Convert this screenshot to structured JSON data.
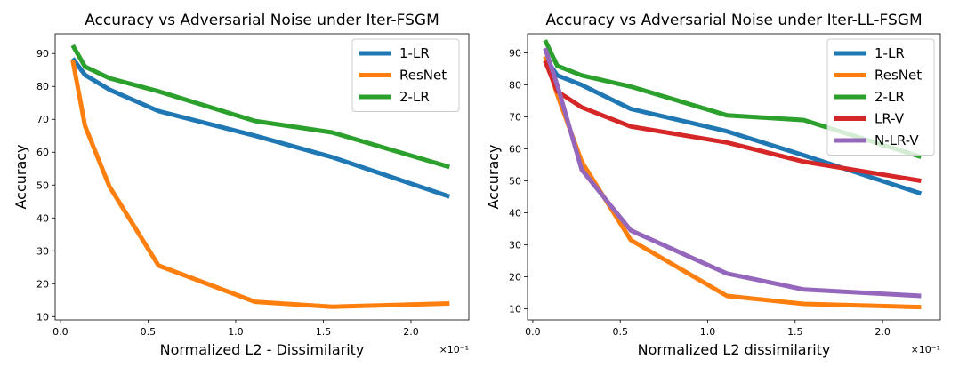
{
  "chart_data": [
    {
      "type": "line",
      "title": "Accuracy vs Adversarial Noise under Iter-FSGM",
      "xlabel": "Normalized L2 - Dissimilarity",
      "ylabel": "Accuracy",
      "x_scale_note": "×10⁻¹",
      "xlim": [
        -0.03,
        2.33
      ],
      "ylim": [
        9,
        96
      ],
      "xticks": [
        0.0,
        0.5,
        1.0,
        1.5,
        2.0
      ],
      "xtick_labels": [
        "0.0",
        "0.5",
        "1.0",
        "1.5",
        "2.0"
      ],
      "yticks": [
        10,
        20,
        30,
        40,
        50,
        60,
        70,
        80,
        90
      ],
      "legend_position": "top-right",
      "series": [
        {
          "name": "1-LR",
          "color": "#1f77b4",
          "x": [
            0.07,
            0.14,
            0.28,
            0.56,
            1.11,
            1.55,
            2.22
          ],
          "y": [
            88.5,
            83.5,
            79,
            72.5,
            65,
            58.5,
            46.5
          ]
        },
        {
          "name": "ResNet",
          "color": "#ff7f0e",
          "x": [
            0.07,
            0.14,
            0.28,
            0.56,
            1.11,
            1.55,
            2.22
          ],
          "y": [
            88,
            68,
            49.5,
            25.5,
            14.5,
            13,
            14
          ]
        },
        {
          "name": "2-LR",
          "color": "#2ca02c",
          "x": [
            0.07,
            0.14,
            0.28,
            0.56,
            1.11,
            1.55,
            2.22
          ],
          "y": [
            92.5,
            86,
            82.5,
            78.5,
            69.5,
            66,
            55.5
          ]
        }
      ]
    },
    {
      "type": "line",
      "title": "Accuracy vs Adversarial Noise under  Iter-LL-FSGM",
      "xlabel": "Normalized L2 dissimilarity",
      "ylabel": "Accuracy",
      "x_scale_note": "×10⁻¹",
      "xlim": [
        -0.03,
        2.33
      ],
      "ylim": [
        6.5,
        96
      ],
      "xticks": [
        0.0,
        0.5,
        1.0,
        1.5,
        2.0
      ],
      "xtick_labels": [
        "0.0",
        "0.5",
        "1.0",
        "1.5",
        "2.0"
      ],
      "yticks": [
        10,
        20,
        30,
        40,
        50,
        60,
        70,
        80,
        90
      ],
      "legend_position": "top-right",
      "series": [
        {
          "name": "1-LR",
          "color": "#1f77b4",
          "x": [
            0.07,
            0.14,
            0.28,
            0.56,
            1.11,
            1.55,
            2.22
          ],
          "y": [
            88.5,
            83,
            80,
            72.5,
            65.5,
            58,
            46
          ]
        },
        {
          "name": "ResNet",
          "color": "#ff7f0e",
          "x": [
            0.07,
            0.14,
            0.28,
            0.56,
            1.11,
            1.55,
            2.22
          ],
          "y": [
            89,
            77,
            56,
            31.5,
            14,
            11.5,
            10.5
          ]
        },
        {
          "name": "2-LR",
          "color": "#2ca02c",
          "x": [
            0.07,
            0.14,
            0.28,
            0.56,
            1.11,
            1.55,
            2.22
          ],
          "y": [
            94,
            86,
            83,
            79.5,
            70.5,
            69,
            57.5
          ]
        },
        {
          "name": "LR-V",
          "color": "#d62728",
          "x": [
            0.07,
            0.14,
            0.28,
            0.56,
            1.11,
            1.55,
            2.22
          ],
          "y": [
            87.5,
            78,
            73,
            67,
            62,
            56,
            50
          ]
        },
        {
          "name": "N-LR-V",
          "color": "#9467bd",
          "x": [
            0.07,
            0.14,
            0.28,
            0.56,
            1.11,
            1.55,
            2.22
          ],
          "y": [
            91.5,
            80,
            53.5,
            34.5,
            21,
            16,
            14
          ]
        }
      ]
    }
  ]
}
